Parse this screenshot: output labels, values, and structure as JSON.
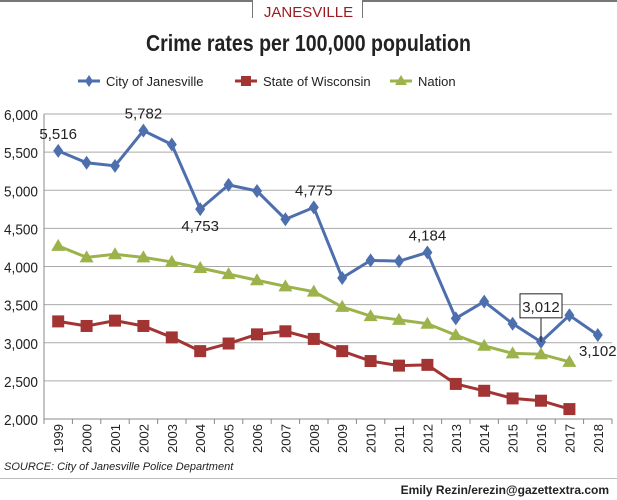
{
  "kicker": "JANESVILLE",
  "chart_data": {
    "type": "line",
    "title": "Crime rates per 100,000 population",
    "x": [
      "1999",
      "2000",
      "2001",
      "2002",
      "2003",
      "2004",
      "2005",
      "2006",
      "2007",
      "2008",
      "2009",
      "2010",
      "2011",
      "2012",
      "2013",
      "2014",
      "2015",
      "2016",
      "2017",
      "2018"
    ],
    "ylim": [
      2000,
      6000
    ],
    "yticks": [
      "2,000",
      "2,500",
      "3,000",
      "3,500",
      "4,000",
      "4,500",
      "5,000",
      "5,500",
      "6,000"
    ],
    "grid": true,
    "legend": "top",
    "series": [
      {
        "name": "City of Janesville",
        "color": "#4e6fae",
        "marker": "diamond",
        "values": [
          5516,
          5360,
          5320,
          5782,
          5600,
          4753,
          5070,
          4990,
          4620,
          4775,
          3850,
          4080,
          4070,
          4184,
          3320,
          3540,
          3250,
          3012,
          3360,
          3102
        ]
      },
      {
        "name": "State of Wisconsin",
        "color": "#a33434",
        "marker": "square",
        "values": [
          3280,
          3220,
          3290,
          3220,
          3070,
          2890,
          2990,
          3110,
          3150,
          3050,
          2890,
          2760,
          2700,
          2710,
          2460,
          2370,
          2270,
          2240,
          2130,
          null
        ]
      },
      {
        "name": "Nation",
        "color": "#9bb34a",
        "marker": "triangle",
        "values": [
          4270,
          4120,
          4160,
          4120,
          4060,
          3980,
          3900,
          3820,
          3740,
          3670,
          3470,
          3350,
          3300,
          3250,
          3100,
          2960,
          2860,
          2850,
          2750,
          null
        ]
      }
    ],
    "annotations": [
      {
        "x": "1999",
        "label": "5,516",
        "pos": "above"
      },
      {
        "x": "2002",
        "label": "5,782",
        "pos": "above"
      },
      {
        "x": "2004",
        "label": "4,753",
        "pos": "below"
      },
      {
        "x": "2008",
        "label": "4,775",
        "pos": "above"
      },
      {
        "x": "2012",
        "label": "4,184",
        "pos": "above"
      },
      {
        "x": "2016",
        "label": "3,012",
        "pos": "boxed"
      },
      {
        "x": "2018",
        "label": "3,102",
        "pos": "below"
      }
    ]
  },
  "source": "SOURCE: City of Janesville Police Department",
  "credit": "Emily Rezin/erezin@gazettextra.com"
}
